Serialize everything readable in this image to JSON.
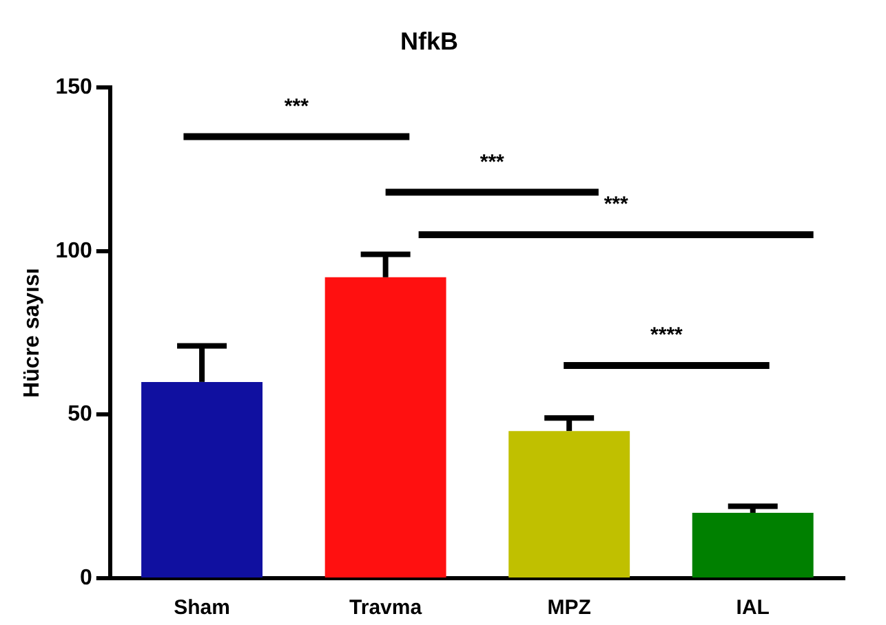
{
  "chart_data": {
    "type": "bar",
    "title": "NfkB",
    "ylabel": "Hücre sayısı",
    "categories": [
      "Sham",
      "Travma",
      "MPZ",
      "IAL"
    ],
    "values": [
      60,
      92,
      45,
      20
    ],
    "errors": [
      [
        60,
        71
      ],
      [
        92,
        99
      ],
      [
        45,
        49
      ],
      [
        20,
        22
      ]
    ],
    "colors": [
      "#1010a0",
      "#ff1010",
      "#c0c000",
      "#008000"
    ],
    "ylim": [
      0,
      150
    ],
    "yticks": [
      0,
      50,
      100,
      150
    ],
    "grid": false,
    "legend": false,
    "annotations": [
      "***",
      "***",
      "***",
      "****"
    ]
  }
}
